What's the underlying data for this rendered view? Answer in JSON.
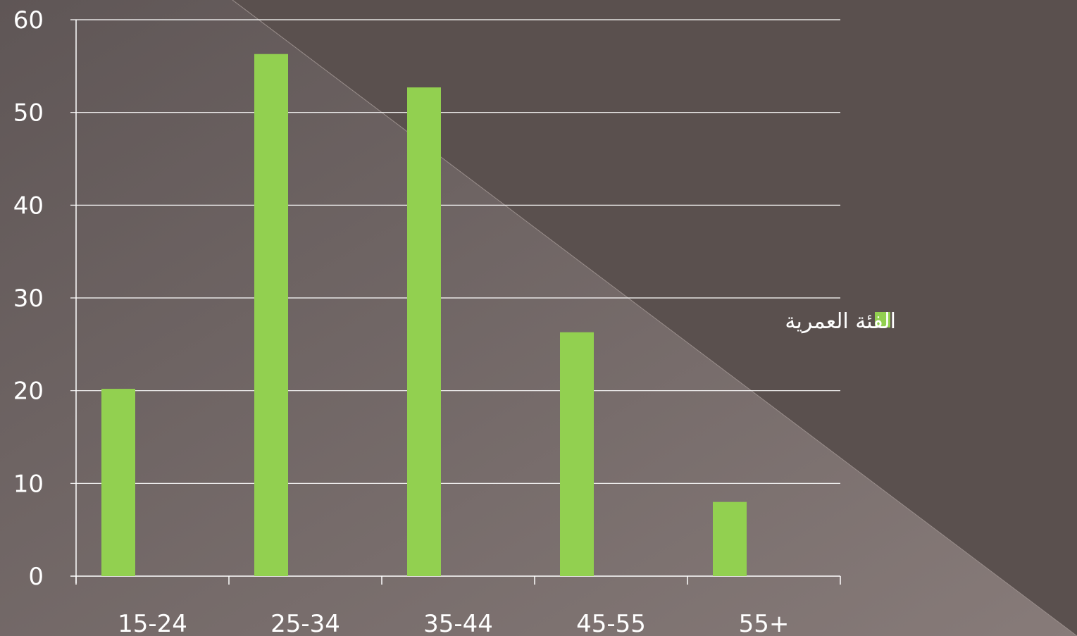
{
  "chart_data": {
    "type": "bar",
    "categories": [
      "15-24",
      "25-34",
      "35-44",
      "45-55",
      "55+"
    ],
    "series": [
      {
        "name": "الفئة العمرية",
        "values": [
          20.2,
          56.3,
          52.7,
          26.3,
          8.0
        ],
        "color": "#92d050"
      }
    ],
    "ylim": [
      0,
      60
    ],
    "yticks": [
      "0",
      "10",
      "20",
      "30",
      "40",
      "50",
      "60"
    ],
    "grid": true,
    "legend_position": "right",
    "title": "",
    "xlabel": "",
    "ylabel": ""
  },
  "colors": {
    "background_dark": "#5a504e",
    "background_light": "#857977",
    "text": "#ffffff",
    "gridline": "#ffffff"
  }
}
